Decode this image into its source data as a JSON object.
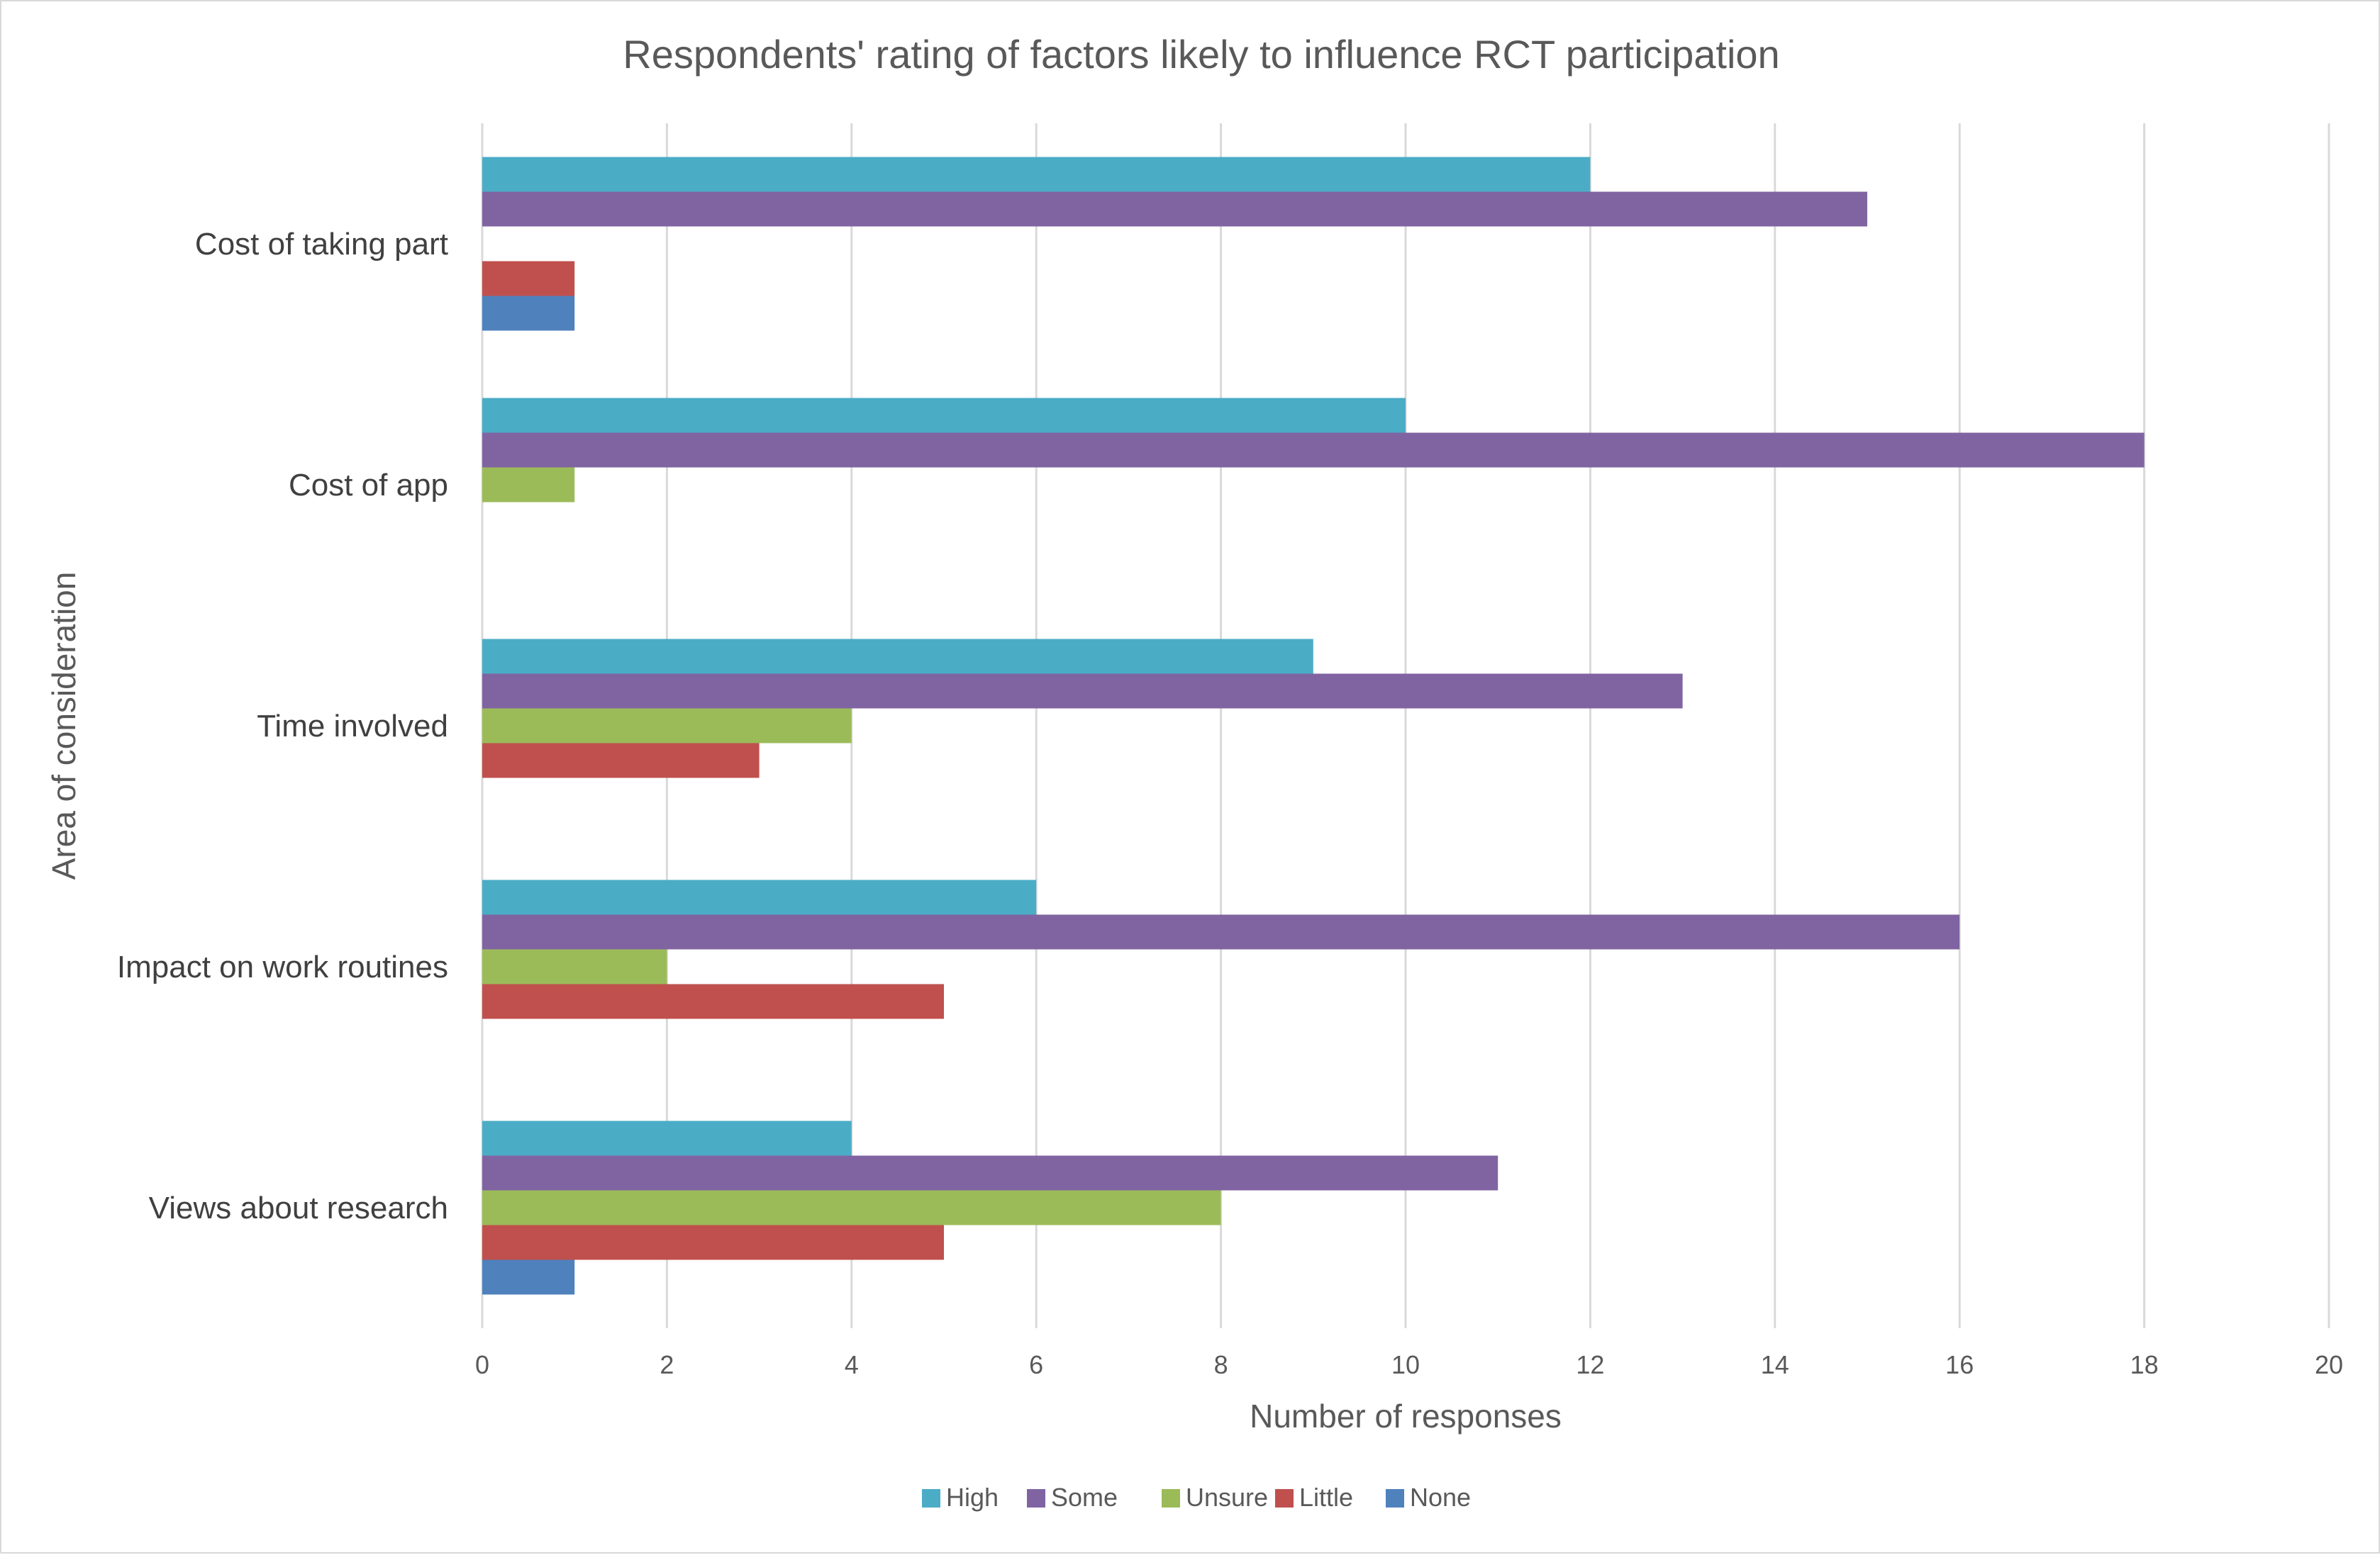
{
  "chart_data": {
    "type": "bar",
    "orientation": "horizontal",
    "title": "Respondents' rating of factors likely to influence RCT participation",
    "xlabel": "Number of responses",
    "ylabel": "Area of consideration",
    "xlim": [
      0,
      20
    ],
    "xticks": [
      0,
      2,
      4,
      6,
      8,
      10,
      12,
      14,
      16,
      18,
      20
    ],
    "grid": true,
    "legend_position": "bottom",
    "categories": [
      "Cost of taking part",
      "Cost of app",
      "Time involved",
      "Impact on work routines",
      "Views about research"
    ],
    "series": [
      {
        "name": "High",
        "color": "#4bacc6",
        "values": [
          12,
          10,
          9,
          6,
          4
        ]
      },
      {
        "name": "Some",
        "color": "#8064a2",
        "values": [
          15,
          18,
          13,
          16,
          11
        ]
      },
      {
        "name": "Unsure",
        "color": "#9bbb59",
        "values": [
          0,
          1,
          4,
          2,
          8
        ]
      },
      {
        "name": "Little",
        "color": "#c0504d",
        "values": [
          1,
          0,
          3,
          5,
          5
        ]
      },
      {
        "name": "None",
        "color": "#4f81bd",
        "values": [
          1,
          0,
          0,
          0,
          1
        ]
      }
    ]
  }
}
